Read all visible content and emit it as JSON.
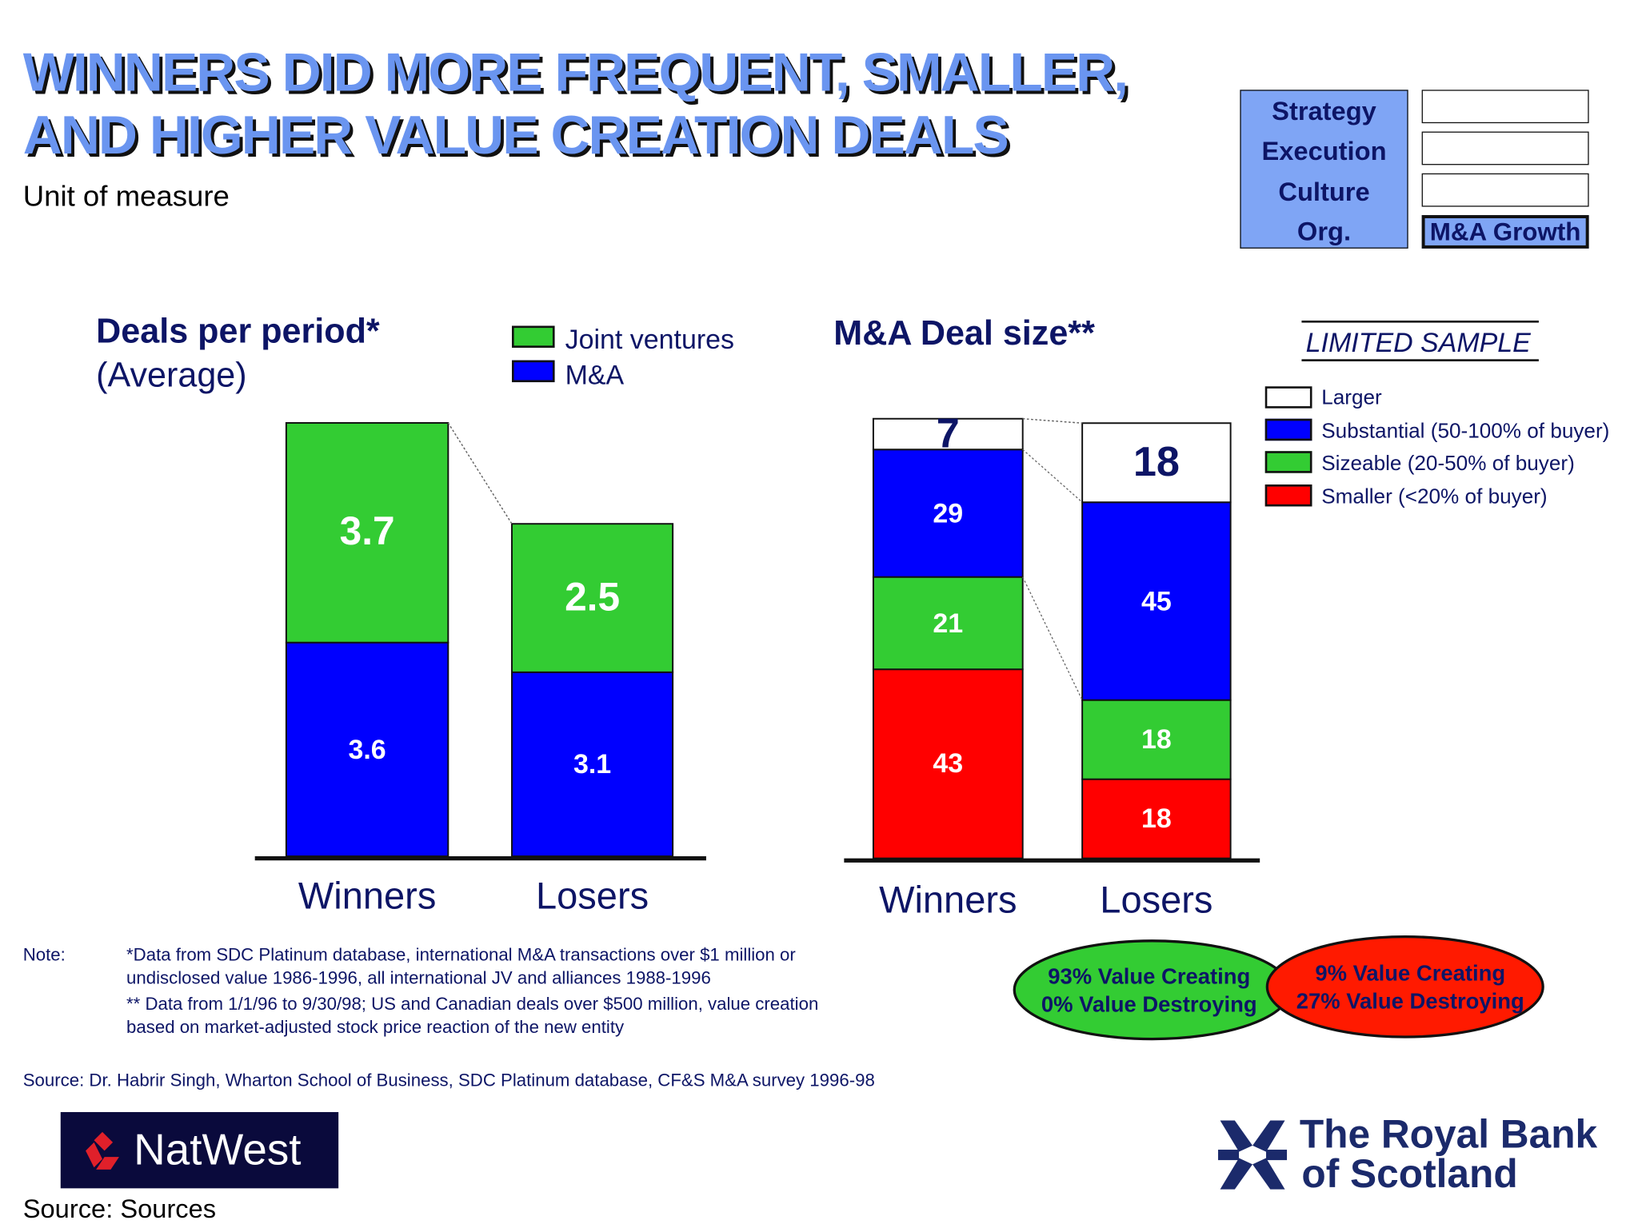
{
  "title": {
    "line1": "WINNERS DID MORE FREQUENT, SMALLER,",
    "line2": "AND HIGHER VALUE CREATION DEALS"
  },
  "unit_of_measure": "Unit of measure",
  "framework": {
    "left_items": [
      "Strategy",
      "Execution",
      "Culture",
      "Org."
    ],
    "right_items": [
      "",
      "",
      "",
      "M&A Growth"
    ],
    "highlight_color": "#7fa5f5"
  },
  "chart_data": [
    {
      "type": "bar",
      "stacked": true,
      "title": "Deals per period*",
      "subtitle": "(Average)",
      "categories": [
        "Winners",
        "Losers"
      ],
      "series": [
        {
          "name": "M&A",
          "values": [
            3.6,
            3.1
          ],
          "color": "#0000ff"
        },
        {
          "name": "Joint ventures",
          "values": [
            3.7,
            2.5
          ],
          "color": "#33cc33"
        }
      ],
      "legend": "top-right"
    },
    {
      "type": "bar",
      "stacked": true,
      "title": "M&A Deal size**",
      "annotation": "LIMITED SAMPLE",
      "categories": [
        "Winners",
        "Losers"
      ],
      "series": [
        {
          "name": "Smaller (<20% of buyer)",
          "values": [
            43,
            18
          ],
          "color": "#ff0000"
        },
        {
          "name": "Sizeable (20-50% of buyer)",
          "values": [
            21,
            18
          ],
          "color": "#33cc33"
        },
        {
          "name": "Substantial (50-100% of buyer)",
          "values": [
            29,
            45
          ],
          "color": "#0000ff"
        },
        {
          "name": "Larger",
          "values": [
            7,
            18
          ],
          "color": "#ffffff"
        }
      ],
      "legend_order": [
        "Larger",
        "Substantial (50-100% of buyer)",
        "Sizeable (20-50% of buyer)",
        "Smaller (<20% of buyer)"
      ],
      "legend": "right"
    }
  ],
  "outcomes": {
    "winners": {
      "line1": "93% Value Creating",
      "line2": "0% Value Destroying",
      "color": "#33cc33"
    },
    "losers": {
      "line1": "9% Value Creating",
      "line2": "27% Value Destroying",
      "color": "#ff0000"
    }
  },
  "notes": {
    "label": "Note:",
    "lines": [
      "*Data from SDC Platinum database, international M&A transactions over $1 million or",
      "undisclosed value 1986-1996, all international JV and alliances 1988-1996",
      "** Data from 1/1/96 to 9/30/98; US and Canadian deals over $500 million, value creation",
      "based on market-adjusted stock price reaction of the new entity"
    ]
  },
  "source": "Source:  Dr. Habrir Singh, Wharton School of Business, SDC Platinum database, CF&S M&A survey 1996-98",
  "footer_source": "Source: Sources",
  "logos": {
    "natwest": "NatWest",
    "rbs_line1": "The Royal Bank",
    "rbs_line2": "of Scotland"
  }
}
